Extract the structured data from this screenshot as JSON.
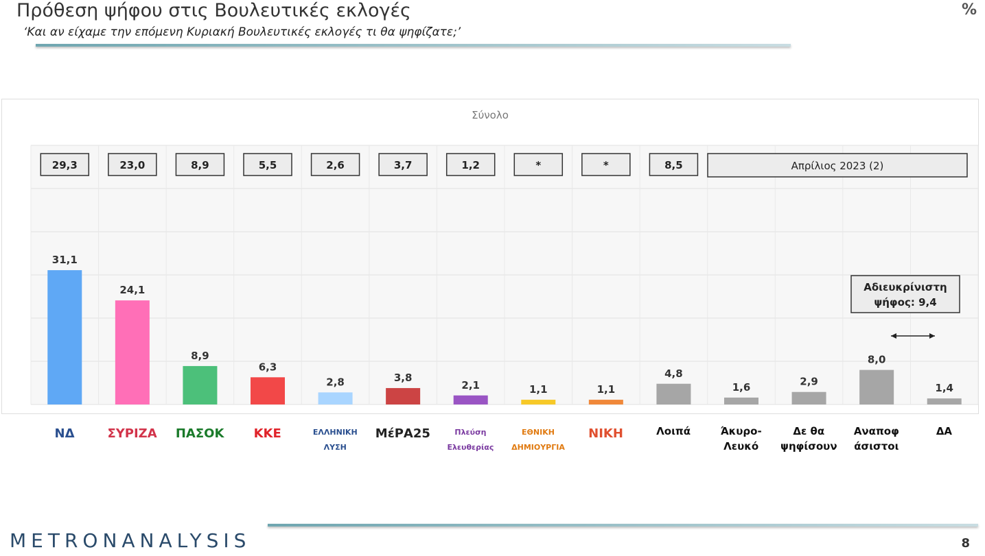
{
  "header": {
    "title": "Πρόθεση ψήφου στις Βουλευτικές εκλογές",
    "subtitle": "‘Και αν είχαμε την επόμενη Κυριακή Βουλευτικές εκλογές τι θα ψηφίζατε;’",
    "unit": "%"
  },
  "footer": {
    "brand": "METRONANALYSIS",
    "page": "8"
  },
  "chart_data": {
    "type": "bar",
    "title": "Σύνολο",
    "ylim": [
      0,
      60
    ],
    "grid": true,
    "categories": [
      "ΝΕΑ ΔΗΜΟΚΡΑΤΙΑ",
      "ΣΥΡΙΖΑ",
      "ΠΑΣΟΚ",
      "ΚΚΕ",
      "ΕΛΛΗΝΙΚΗ ΛΥΣΗ",
      "ΜέΡΑ25",
      "Πλεύση Ελευθερίας",
      "ΕΘΝΙΚΗ ΔΗΜΙΟΥΡΓΙΑ",
      "ΝΙΚΗ",
      "Λοιπά",
      "Άκυρο-Λευκό",
      "Δε θα ψηφίσουν",
      "Αναποφάσιστοι",
      "ΔΑ"
    ],
    "category_labels": [
      "ΝΔ",
      "ΣΥΡΙΖΑ",
      "ΠΑΣΟΚ",
      "ΚΚΕ",
      "ΕΛΛΗΝΙΚΗ ΛΥΣΗ",
      "ΜέΡΑ25",
      "Πλεύση Ελευθερίας",
      "ΕΘΝΙΚΗ ΔΗΜΙΟΥΡΓΙΑ",
      "ΝΙΚΗ",
      "Λοιπά",
      "Άκυρο-\nΛευκό",
      "Δε θα\nψηφίσουν",
      "Αναποφ\nάσιστοι",
      "ΔΑ"
    ],
    "values": [
      31.1,
      24.1,
      8.9,
      6.3,
      2.8,
      3.8,
      2.1,
      1.1,
      1.1,
      4.8,
      1.6,
      2.9,
      8.0,
      1.4
    ],
    "value_labels": [
      "31,1",
      "24,1",
      "8,9",
      "6,3",
      "2,8",
      "3,8",
      "2,1",
      "1,1",
      "1,1",
      "4,8",
      "1,6",
      "2,9",
      "8,0",
      "1,4"
    ],
    "colors": [
      "#5fa8f5",
      "#ff6fb7",
      "#4cc07a",
      "#f24848",
      "#a9d5ff",
      "#cc4444",
      "#9a55c4",
      "#f7c928",
      "#f0883a",
      "#a6a6a6",
      "#a6a6a6",
      "#a6a6a6",
      "#a6a6a6",
      "#a6a6a6"
    ],
    "comparison": {
      "label": "Απρίλιος 2023 (2)",
      "values": [
        "29,3",
        "23,0",
        "8,9",
        "5,5",
        "2,6",
        "3,7",
        "1,2",
        "*",
        "*",
        "8,5"
      ]
    },
    "annotation": {
      "label": "Αδιευκρίνιστη ψήφος: 9,4"
    }
  }
}
